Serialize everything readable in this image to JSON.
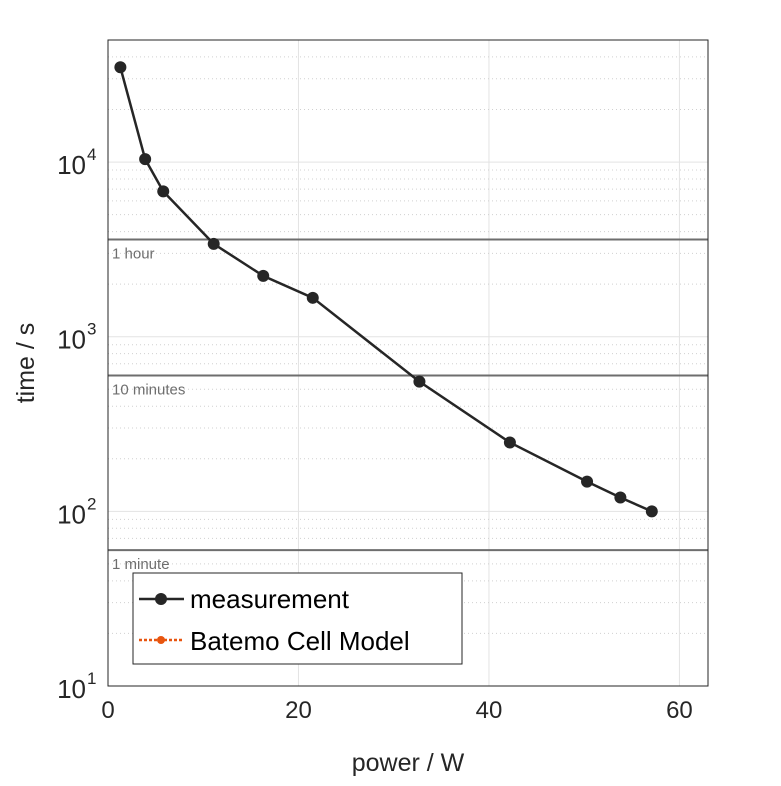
{
  "chart_data": {
    "type": "line",
    "xlabel": "power / W",
    "ylabel": "time / s",
    "xlim": [
      0,
      63
    ],
    "ylim": [
      10,
      50000
    ],
    "yscale": "log",
    "grid": true,
    "xticks": [
      0,
      20,
      40,
      60
    ],
    "xtick_labels": [
      "0",
      "20",
      "40",
      "60"
    ],
    "yticks": [
      10,
      100,
      1000,
      10000
    ],
    "ytick_labels": [
      {
        "base": "10",
        "exp": "1"
      },
      {
        "base": "10",
        "exp": "2"
      },
      {
        "base": "10",
        "exp": "3"
      },
      {
        "base": "10",
        "exp": "4"
      }
    ],
    "series": [
      {
        "name": "measurement",
        "color": "#262626",
        "style": "solid-marker",
        "x": [
          1.3,
          3.9,
          5.8,
          11.1,
          16.3,
          21.5,
          32.7,
          42.2,
          50.3,
          53.8,
          57.1
        ],
        "y": [
          34900,
          10400,
          6800,
          3400,
          2230,
          1670,
          553,
          248,
          148,
          120,
          100
        ]
      },
      {
        "name": "Batemo Cell Model",
        "color": "#e8550f",
        "style": "dotted-marker",
        "x": [],
        "y": []
      }
    ],
    "reference_lines": [
      {
        "y": 3600,
        "label": "1 hour"
      },
      {
        "y": 600,
        "label": "10 minutes"
      },
      {
        "y": 60,
        "label": "1 minute"
      }
    ],
    "legend_position": "bottom-left"
  }
}
